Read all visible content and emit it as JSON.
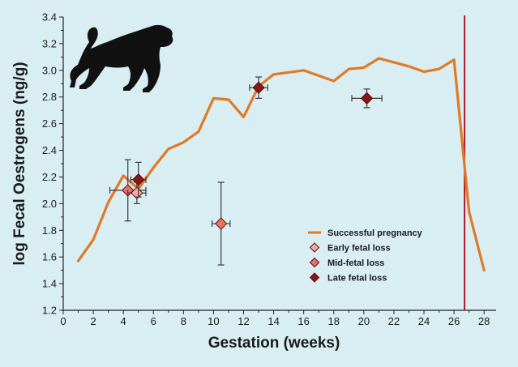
{
  "chart_data": {
    "type": "line",
    "title": "",
    "xlabel": "Gestation (weeks)",
    "ylabel": "log Fecal Oestrogens (ng/g)",
    "xlim": [
      0,
      28.8
    ],
    "ylim": [
      1.2,
      3.4
    ],
    "x_ticks": [
      0,
      2,
      4,
      6,
      8,
      10,
      12,
      14,
      16,
      18,
      20,
      22,
      24,
      26,
      28
    ],
    "y_ticks": [
      1.2,
      1.4,
      1.6,
      1.8,
      2.0,
      2.2,
      2.4,
      2.6,
      2.8,
      3.0,
      3.2,
      3.4
    ],
    "y_tick_labels": [
      "1.2",
      "1.4",
      "1.6",
      "1.8",
      "2.0",
      "2.2",
      "2.4",
      "2.6",
      "2.8",
      "3.0",
      "3.2",
      "3.4"
    ],
    "vertical_line": {
      "x": 26.7,
      "color": "#b0182a"
    },
    "series": [
      {
        "name": "Successful pregnancy",
        "kind": "line",
        "color": "#e07a26",
        "x": [
          1,
          2,
          3,
          4,
          5,
          6,
          7,
          8,
          9,
          10,
          11,
          12,
          13,
          14,
          16,
          18,
          19,
          20,
          21,
          22,
          23,
          24,
          25,
          26,
          27,
          28
        ],
        "y": [
          1.57,
          1.73,
          2.01,
          2.21,
          2.11,
          2.27,
          2.41,
          2.46,
          2.54,
          2.79,
          2.78,
          2.65,
          2.88,
          2.97,
          3.0,
          2.92,
          3.01,
          3.02,
          3.09,
          3.06,
          3.03,
          2.99,
          3.01,
          3.08,
          1.94,
          1.5
        ]
      },
      {
        "name": "Early fetal loss",
        "kind": "points",
        "color": "#f5aaa1",
        "points": [
          {
            "x": 4.9,
            "y": 2.08,
            "xerr": 0.6,
            "yerr": 0.08
          }
        ]
      },
      {
        "name": "Mid-fetal loss",
        "kind": "points",
        "color": "#ec7065",
        "points": [
          {
            "x": 4.3,
            "y": 2.1,
            "xerr": 1.2,
            "yerr": 0.23
          },
          {
            "x": 10.5,
            "y": 1.85,
            "xerr": 0.6,
            "yerr": 0.31
          }
        ]
      },
      {
        "name": "Late fetal loss",
        "kind": "points",
        "color": "#8c1418",
        "points": [
          {
            "x": 5.0,
            "y": 2.18,
            "xerr": 0.5,
            "yerr": 0.13
          },
          {
            "x": 13.0,
            "y": 2.87,
            "xerr": 0.6,
            "yerr": 0.08
          },
          {
            "x": 20.2,
            "y": 2.79,
            "xerr": 1.0,
            "yerr": 0.07
          }
        ]
      }
    ],
    "legend_position": "lower-right"
  },
  "colors": {
    "background": "#d8eef3",
    "axis": "#222222",
    "error_bar": "#3a3a3a",
    "marker_outline": "#5a1010",
    "silhouette": "#111111"
  },
  "icons": {
    "decoration": "baboon-silhouette-icon"
  }
}
